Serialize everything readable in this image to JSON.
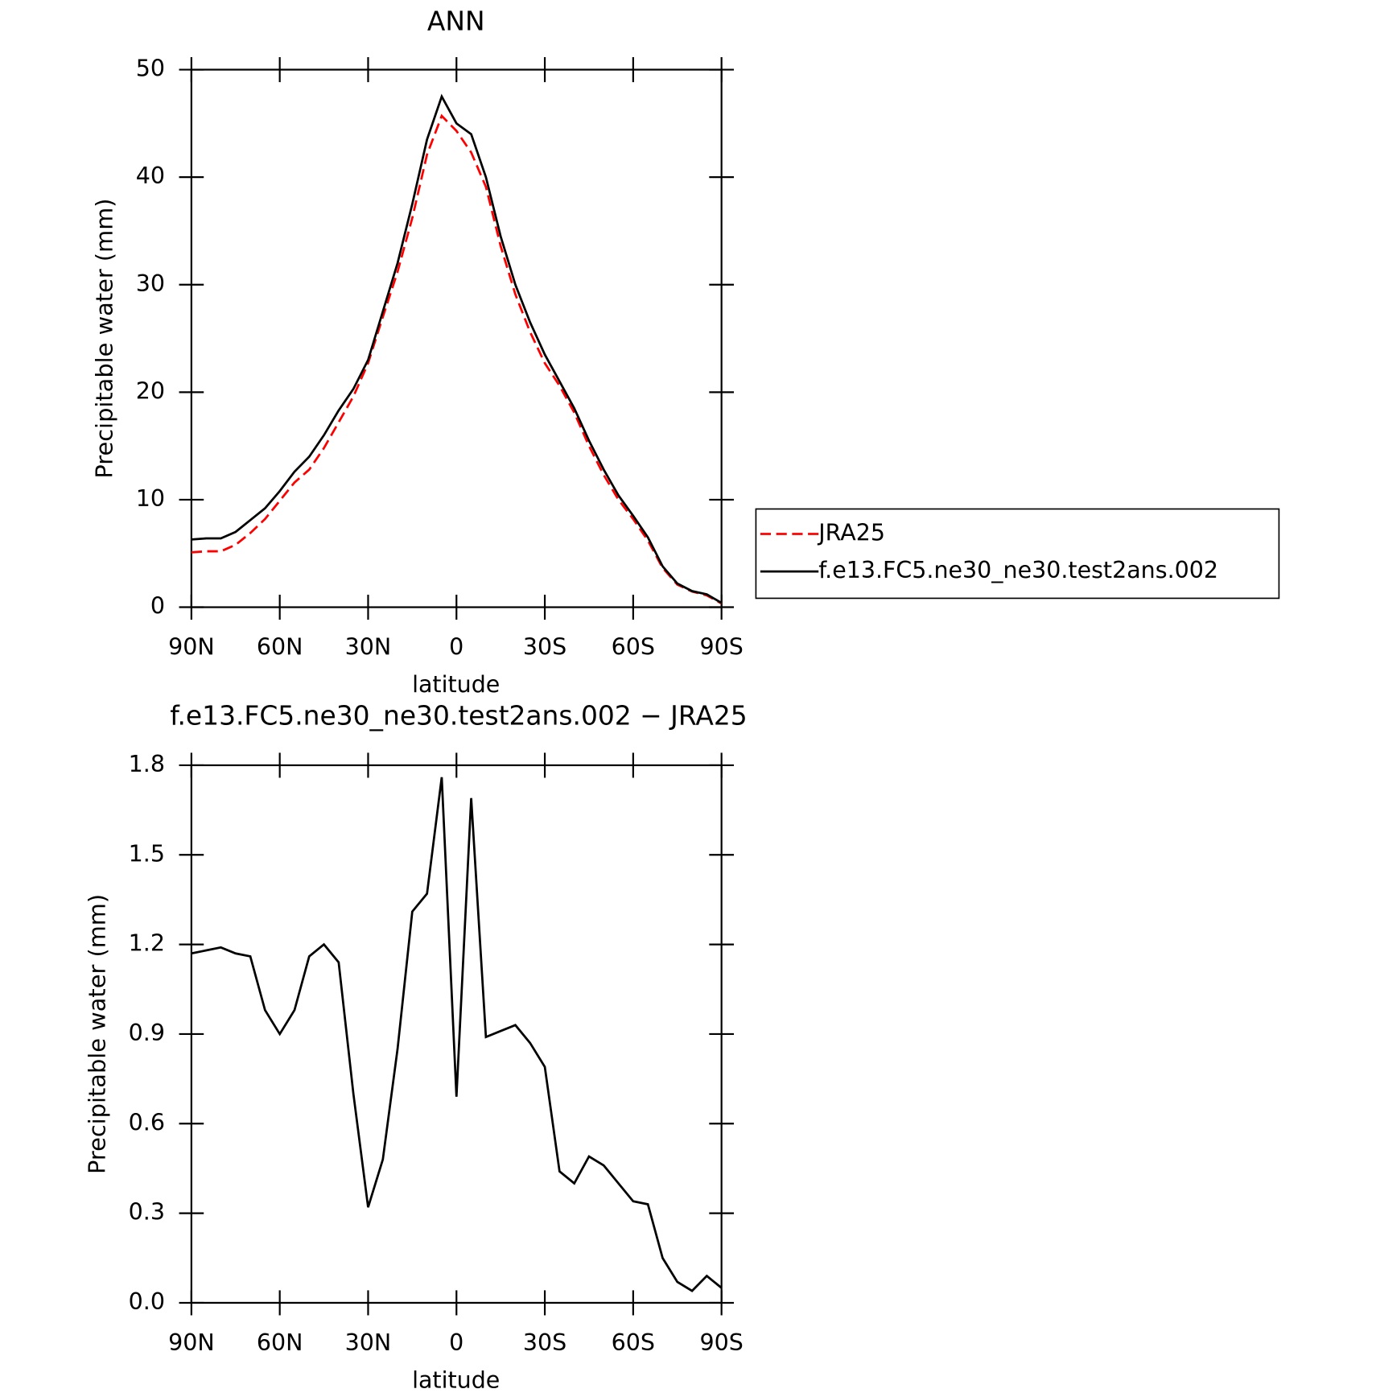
{
  "chart_data": [
    {
      "type": "line",
      "title": "ANN",
      "xlabel": "latitude",
      "ylabel": "Precipitable water (mm)",
      "x": [
        90,
        85,
        80,
        75,
        70,
        65,
        60,
        55,
        50,
        45,
        40,
        35,
        30,
        25,
        20,
        15,
        10,
        5,
        0,
        -5,
        -10,
        -15,
        -20,
        -25,
        -30,
        -35,
        -40,
        -45,
        -50,
        -55,
        -60,
        -65,
        -70,
        -75,
        -80,
        -85,
        -90
      ],
      "series": [
        {
          "name": "JRA25",
          "color": "#ff0000",
          "line_style": "dashed",
          "values": [
            5.1,
            5.2,
            5.2,
            5.8,
            6.9,
            8.2,
            9.9,
            11.6,
            12.8,
            14.8,
            17.2,
            19.6,
            22.7,
            27.0,
            31.2,
            36.2,
            42.1,
            45.7,
            44.3,
            42.3,
            39.1,
            33.6,
            29.1,
            25.6,
            22.7,
            20.6,
            18.1,
            15.0,
            12.3,
            10.0,
            8.2,
            6.2,
            3.65,
            2.1,
            1.46,
            1.1,
            0.35
          ]
        },
        {
          "name": "f.e13.FC5.ne30_ne30.test2ans.002",
          "color": "#000000",
          "line_style": "solid",
          "values": [
            6.3,
            6.4,
            6.4,
            7.0,
            8.1,
            9.2,
            10.8,
            12.6,
            14.0,
            16.0,
            18.3,
            20.3,
            23.0,
            27.5,
            32.0,
            37.5,
            43.5,
            47.5,
            45.0,
            44.0,
            40.0,
            34.5,
            30.0,
            26.5,
            23.5,
            21.0,
            18.5,
            15.5,
            12.8,
            10.4,
            8.5,
            6.5,
            3.8,
            2.2,
            1.5,
            1.2,
            0.4
          ]
        }
      ],
      "xlim": [
        90,
        -90
      ],
      "xticks": [
        {
          "value": 90,
          "label": "90N"
        },
        {
          "value": 60,
          "label": "60N"
        },
        {
          "value": 30,
          "label": "30N"
        },
        0,
        {
          "value": -30,
          "label": "30S"
        },
        {
          "value": -60,
          "label": "60S"
        },
        {
          "value": -90,
          "label": "90S"
        }
      ],
      "ylim": [
        0,
        50
      ],
      "yticks": [
        0,
        10,
        20,
        30,
        40,
        50
      ],
      "legend": "right"
    },
    {
      "type": "line",
      "title": "f.e13.FC5.ne30_ne30.test2ans.002 − JRA25",
      "xlabel": "latitude",
      "ylabel": "Precipitable water (mm)",
      "x": [
        90,
        85,
        80,
        75,
        70,
        65,
        60,
        55,
        50,
        45,
        40,
        35,
        30,
        25,
        20,
        15,
        10,
        5,
        0,
        -5,
        -10,
        -15,
        -20,
        -25,
        -30,
        -35,
        -40,
        -45,
        -50,
        -55,
        -60,
        -65,
        -70,
        -75,
        -80,
        -85,
        -90
      ],
      "series": [
        {
          "color": "#000000",
          "line_style": "solid",
          "values": [
            1.17,
            1.18,
            1.19,
            1.17,
            1.16,
            0.98,
            0.9,
            0.98,
            1.16,
            1.2,
            1.14,
            0.7,
            0.32,
            0.48,
            0.85,
            1.31,
            1.37,
            1.76,
            0.69,
            1.69,
            0.89,
            0.91,
            0.93,
            0.87,
            0.79,
            0.44,
            0.4,
            0.49,
            0.46,
            0.4,
            0.34,
            0.33,
            0.15,
            0.07,
            0.04,
            0.09,
            0.05
          ]
        }
      ],
      "xlim": [
        90,
        -90
      ],
      "xticks": [
        {
          "value": 90,
          "label": "90N"
        },
        {
          "value": 60,
          "label": "60N"
        },
        {
          "value": 30,
          "label": "30N"
        },
        0,
        {
          "value": -30,
          "label": "30S"
        },
        {
          "value": -60,
          "label": "60S"
        },
        {
          "value": -90,
          "label": "90S"
        }
      ],
      "ylim": [
        0,
        1.8
      ],
      "yticks": [
        {
          "value": 0,
          "label": "0.0"
        },
        0.3,
        0.6,
        0.9,
        1.2,
        1.5,
        1.8
      ]
    }
  ]
}
